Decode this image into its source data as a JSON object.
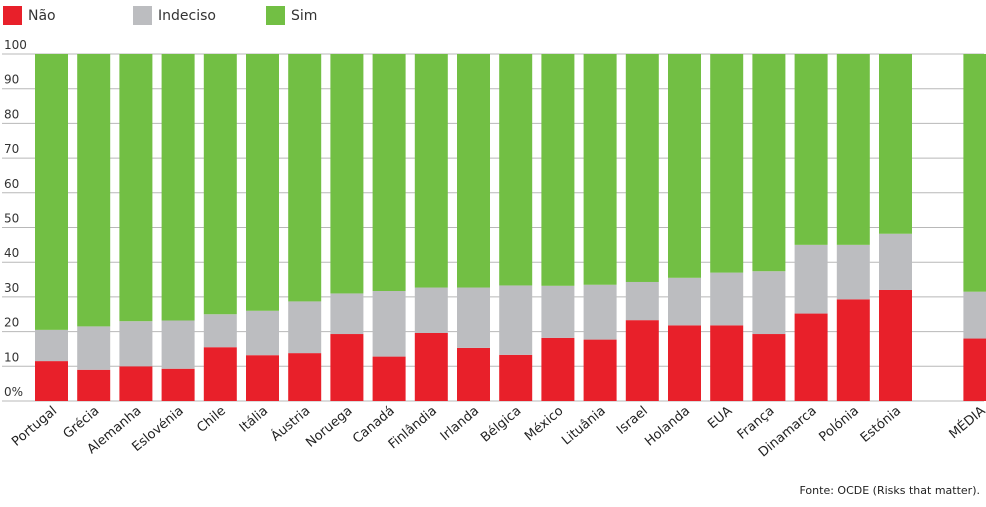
{
  "chart_data": {
    "type": "bar",
    "stacked": true,
    "categories": [
      "Portugal",
      "Grécia",
      "Alemanha",
      "Eslovénia",
      "Chile",
      "Itália",
      "Áustria",
      "Noruega",
      "Canadá",
      "Finlândia",
      "Irlanda",
      "Bélgica",
      "México",
      "Lituânia",
      "Israel",
      "Holanda",
      "EUA",
      "França",
      "Dinamarca",
      "Polónia",
      "Estónia",
      "MÉDIA"
    ],
    "series": [
      {
        "name": "Não",
        "color": "#e8202a",
        "values": [
          11.5,
          9,
          10,
          9.3,
          15.5,
          13.2,
          13.8,
          19.3,
          12.8,
          19.6,
          15.3,
          13.3,
          18.2,
          17.7,
          23.3,
          21.8,
          21.8,
          19.3,
          25.2,
          29.3,
          32,
          18
        ]
      },
      {
        "name": "Indeciso",
        "color": "#bcbdc0",
        "values": [
          9,
          12.5,
          13,
          13.9,
          9.5,
          12.8,
          14.9,
          11.7,
          18.9,
          13.1,
          17.4,
          20,
          15,
          15.8,
          11,
          13.7,
          15.2,
          18.1,
          19.8,
          15.7,
          16.2,
          13.5
        ]
      },
      {
        "name": "Sim",
        "color": "#72bf44",
        "values": [
          79.5,
          78.5,
          77,
          76.8,
          75,
          74,
          71.3,
          69,
          68.3,
          67.3,
          67.3,
          66.7,
          66.8,
          66.5,
          65.7,
          64.5,
          63,
          62.6,
          55,
          55,
          51.8,
          68.5
        ]
      }
    ],
    "y_ticks": [
      "0%",
      "10",
      "20",
      "30",
      "40",
      "50",
      "60",
      "70",
      "80",
      "90",
      "100"
    ],
    "ylim": [
      0,
      100
    ],
    "grid": true,
    "legend": "top-left",
    "source": "Fonte: OCDE (Risks that matter)."
  }
}
